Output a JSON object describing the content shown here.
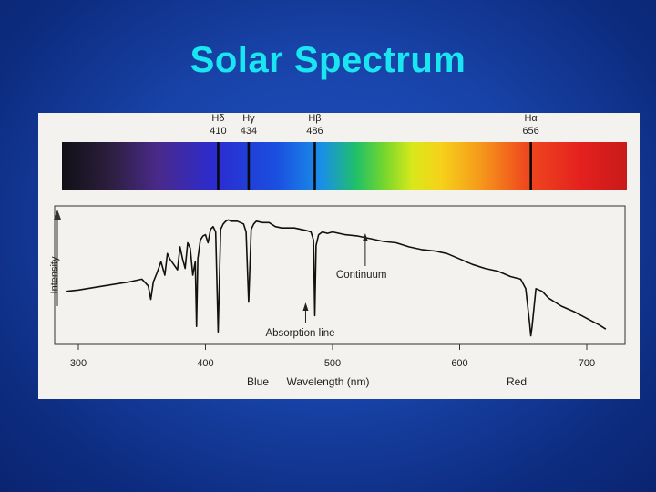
{
  "slide": {
    "title": "Solar Spectrum",
    "background_color": "#1843a8",
    "title_color": "#19e6f0"
  },
  "chart_data": {
    "type": "line",
    "title": "",
    "xlabel": "Wavelength (nm)",
    "ylabel": "Intensity",
    "xlim": [
      290,
      730
    ],
    "ylim": [
      0,
      1
    ],
    "x_ticks": [
      300,
      400,
      500,
      600,
      700
    ],
    "x_tick_labels": [
      "300",
      "400",
      "500",
      "600",
      "700"
    ],
    "axis_end_labels": {
      "left": "Blue",
      "right": "Red"
    },
    "grid": false,
    "legend": "none",
    "spectral_lines": [
      {
        "name": "Hδ",
        "wavelength": 410,
        "label": "410"
      },
      {
        "name": "Hγ",
        "wavelength": 434,
        "label": "434"
      },
      {
        "name": "Hβ",
        "wavelength": 486,
        "label": "486"
      },
      {
        "name": "Hα",
        "wavelength": 656,
        "label": "656"
      }
    ],
    "annotations": [
      {
        "text": "Continuum",
        "x": 520,
        "y": 0.76
      },
      {
        "text": "Absorption line",
        "x": 486,
        "y": 0.1
      }
    ],
    "series": [
      {
        "color": "#111111",
        "x": [
          290,
          300,
          320,
          340,
          350,
          355,
          357,
          359,
          362,
          365,
          368,
          370,
          372,
          375,
          378,
          380,
          382,
          384,
          386,
          388,
          390,
          392,
          393,
          394,
          396,
          398,
          400,
          402,
          404,
          406,
          408,
          410,
          412,
          414,
          416,
          418,
          420,
          425,
          430,
          432,
          434,
          436,
          438,
          440,
          445,
          450,
          455,
          460,
          465,
          470,
          475,
          480,
          483,
          485,
          486,
          487,
          489,
          492,
          496,
          500,
          510,
          520,
          530,
          540,
          550,
          560,
          570,
          580,
          590,
          600,
          610,
          620,
          630,
          640,
          648,
          652,
          655,
          656,
          657,
          660,
          665,
          670,
          680,
          690,
          700,
          710,
          715
        ],
        "y": [
          0.38,
          0.39,
          0.42,
          0.45,
          0.47,
          0.42,
          0.32,
          0.45,
          0.52,
          0.6,
          0.5,
          0.66,
          0.62,
          0.58,
          0.54,
          0.71,
          0.62,
          0.55,
          0.74,
          0.7,
          0.5,
          0.6,
          0.12,
          0.62,
          0.76,
          0.79,
          0.8,
          0.74,
          0.84,
          0.86,
          0.82,
          0.08,
          0.84,
          0.88,
          0.9,
          0.91,
          0.9,
          0.9,
          0.88,
          0.82,
          0.3,
          0.84,
          0.88,
          0.9,
          0.89,
          0.89,
          0.86,
          0.85,
          0.85,
          0.85,
          0.84,
          0.83,
          0.82,
          0.76,
          0.2,
          0.72,
          0.8,
          0.82,
          0.81,
          0.82,
          0.8,
          0.79,
          0.77,
          0.75,
          0.74,
          0.71,
          0.69,
          0.68,
          0.66,
          0.62,
          0.58,
          0.55,
          0.53,
          0.49,
          0.47,
          0.4,
          0.15,
          0.05,
          0.12,
          0.4,
          0.38,
          0.33,
          0.27,
          0.23,
          0.18,
          0.13,
          0.1
        ]
      }
    ]
  }
}
